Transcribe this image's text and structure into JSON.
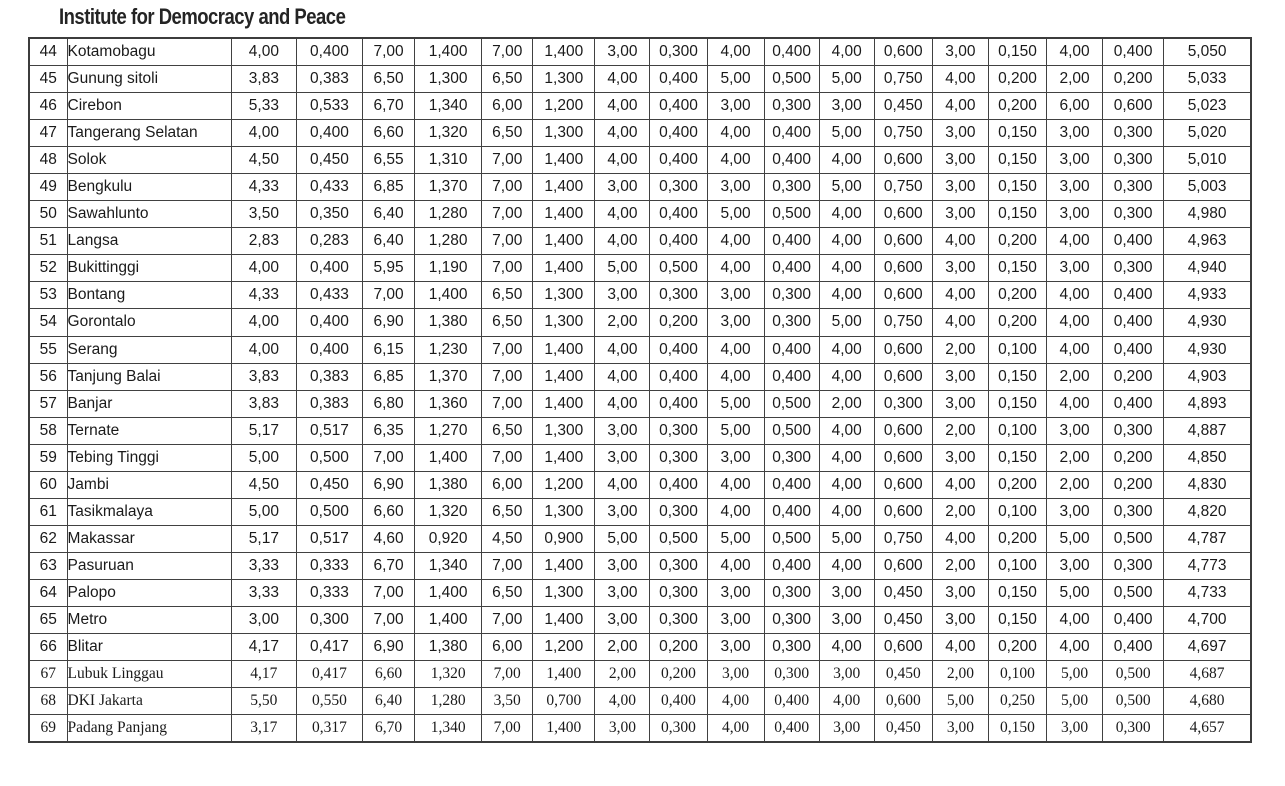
{
  "title": "Institute for Democracy and Peace",
  "accent_colors": {
    "text": "#1a1a1a",
    "grid": "#414141",
    "background": "#ffffff"
  },
  "table": {
    "rows": [
      {
        "no": "44",
        "city": "Kotamobagu",
        "font": "sans",
        "scores": [
          "4,00",
          "0,400",
          "7,00",
          "1,400",
          "7,00",
          "1,400",
          "3,00",
          "0,300",
          "4,00",
          "0,400",
          "4,00",
          "0,600",
          "3,00",
          "0,150",
          "4,00",
          "0,400"
        ],
        "total": "5,050"
      },
      {
        "no": "45",
        "city": "Gunung sitoli",
        "font": "sans",
        "scores": [
          "3,83",
          "0,383",
          "6,50",
          "1,300",
          "6,50",
          "1,300",
          "4,00",
          "0,400",
          "5,00",
          "0,500",
          "5,00",
          "0,750",
          "4,00",
          "0,200",
          "2,00",
          "0,200"
        ],
        "total": "5,033"
      },
      {
        "no": "46",
        "city": "Cirebon",
        "font": "sans",
        "scores": [
          "5,33",
          "0,533",
          "6,70",
          "1,340",
          "6,00",
          "1,200",
          "4,00",
          "0,400",
          "3,00",
          "0,300",
          "3,00",
          "0,450",
          "4,00",
          "0,200",
          "6,00",
          "0,600"
        ],
        "total": "5,023"
      },
      {
        "no": "47",
        "city": "Tangerang Selatan",
        "font": "sans",
        "scores": [
          "4,00",
          "0,400",
          "6,60",
          "1,320",
          "6,50",
          "1,300",
          "4,00",
          "0,400",
          "4,00",
          "0,400",
          "5,00",
          "0,750",
          "3,00",
          "0,150",
          "3,00",
          "0,300"
        ],
        "total": "5,020"
      },
      {
        "no": "48",
        "city": "Solok",
        "font": "sans",
        "scores": [
          "4,50",
          "0,450",
          "6,55",
          "1,310",
          "7,00",
          "1,400",
          "4,00",
          "0,400",
          "4,00",
          "0,400",
          "4,00",
          "0,600",
          "3,00",
          "0,150",
          "3,00",
          "0,300"
        ],
        "total": "5,010"
      },
      {
        "no": "49",
        "city": "Bengkulu",
        "font": "sans",
        "scores": [
          "4,33",
          "0,433",
          "6,85",
          "1,370",
          "7,00",
          "1,400",
          "3,00",
          "0,300",
          "3,00",
          "0,300",
          "5,00",
          "0,750",
          "3,00",
          "0,150",
          "3,00",
          "0,300"
        ],
        "total": "5,003"
      },
      {
        "no": "50",
        "city": "Sawahlunto",
        "font": "sans",
        "scores": [
          "3,50",
          "0,350",
          "6,40",
          "1,280",
          "7,00",
          "1,400",
          "4,00",
          "0,400",
          "5,00",
          "0,500",
          "4,00",
          "0,600",
          "3,00",
          "0,150",
          "3,00",
          "0,300"
        ],
        "total": "4,980"
      },
      {
        "no": "51",
        "city": "Langsa",
        "font": "sans",
        "scores": [
          "2,83",
          "0,283",
          "6,40",
          "1,280",
          "7,00",
          "1,400",
          "4,00",
          "0,400",
          "4,00",
          "0,400",
          "4,00",
          "0,600",
          "4,00",
          "0,200",
          "4,00",
          "0,400"
        ],
        "total": "4,963"
      },
      {
        "no": "52",
        "city": "Bukittinggi",
        "font": "sans",
        "scores": [
          "4,00",
          "0,400",
          "5,95",
          "1,190",
          "7,00",
          "1,400",
          "5,00",
          "0,500",
          "4,00",
          "0,400",
          "4,00",
          "0,600",
          "3,00",
          "0,150",
          "3,00",
          "0,300"
        ],
        "total": "4,940"
      },
      {
        "no": "53",
        "city": "Bontang",
        "font": "sans",
        "scores": [
          "4,33",
          "0,433",
          "7,00",
          "1,400",
          "6,50",
          "1,300",
          "3,00",
          "0,300",
          "3,00",
          "0,300",
          "4,00",
          "0,600",
          "4,00",
          "0,200",
          "4,00",
          "0,400"
        ],
        "total": "4,933"
      },
      {
        "no": "54",
        "city": "Gorontalo",
        "font": "sans",
        "scores": [
          "4,00",
          "0,400",
          "6,90",
          "1,380",
          "6,50",
          "1,300",
          "2,00",
          "0,200",
          "3,00",
          "0,300",
          "5,00",
          "0,750",
          "4,00",
          "0,200",
          "4,00",
          "0,400"
        ],
        "total": "4,930"
      },
      {
        "no": "55",
        "city": "Serang",
        "font": "sans",
        "scores": [
          "4,00",
          "0,400",
          "6,15",
          "1,230",
          "7,00",
          "1,400",
          "4,00",
          "0,400",
          "4,00",
          "0,400",
          "4,00",
          "0,600",
          "2,00",
          "0,100",
          "4,00",
          "0,400"
        ],
        "total": "4,930"
      },
      {
        "no": "56",
        "city": "Tanjung Balai",
        "font": "sans",
        "scores": [
          "3,83",
          "0,383",
          "6,85",
          "1,370",
          "7,00",
          "1,400",
          "4,00",
          "0,400",
          "4,00",
          "0,400",
          "4,00",
          "0,600",
          "3,00",
          "0,150",
          "2,00",
          "0,200"
        ],
        "total": "4,903"
      },
      {
        "no": "57",
        "city": "Banjar",
        "font": "sans",
        "scores": [
          "3,83",
          "0,383",
          "6,80",
          "1,360",
          "7,00",
          "1,400",
          "4,00",
          "0,400",
          "5,00",
          "0,500",
          "2,00",
          "0,300",
          "3,00",
          "0,150",
          "4,00",
          "0,400"
        ],
        "total": "4,893"
      },
      {
        "no": "58",
        "city": "Ternate",
        "font": "sans",
        "scores": [
          "5,17",
          "0,517",
          "6,35",
          "1,270",
          "6,50",
          "1,300",
          "3,00",
          "0,300",
          "5,00",
          "0,500",
          "4,00",
          "0,600",
          "2,00",
          "0,100",
          "3,00",
          "0,300"
        ],
        "total": "4,887"
      },
      {
        "no": "59",
        "city": "Tebing Tinggi",
        "font": "sans",
        "scores": [
          "5,00",
          "0,500",
          "7,00",
          "1,400",
          "7,00",
          "1,400",
          "3,00",
          "0,300",
          "3,00",
          "0,300",
          "4,00",
          "0,600",
          "3,00",
          "0,150",
          "2,00",
          "0,200"
        ],
        "total": "4,850"
      },
      {
        "no": "60",
        "city": "Jambi",
        "font": "sans",
        "scores": [
          "4,50",
          "0,450",
          "6,90",
          "1,380",
          "6,00",
          "1,200",
          "4,00",
          "0,400",
          "4,00",
          "0,400",
          "4,00",
          "0,600",
          "4,00",
          "0,200",
          "2,00",
          "0,200"
        ],
        "total": "4,830"
      },
      {
        "no": "61",
        "city": "Tasikmalaya",
        "font": "sans",
        "scores": [
          "5,00",
          "0,500",
          "6,60",
          "1,320",
          "6,50",
          "1,300",
          "3,00",
          "0,300",
          "4,00",
          "0,400",
          "4,00",
          "0,600",
          "2,00",
          "0,100",
          "3,00",
          "0,300"
        ],
        "total": "4,820"
      },
      {
        "no": "62",
        "city": "Makassar",
        "font": "sans",
        "scores": [
          "5,17",
          "0,517",
          "4,60",
          "0,920",
          "4,50",
          "0,900",
          "5,00",
          "0,500",
          "5,00",
          "0,500",
          "5,00",
          "0,750",
          "4,00",
          "0,200",
          "5,00",
          "0,500"
        ],
        "total": "4,787"
      },
      {
        "no": "63",
        "city": "Pasuruan",
        "font": "sans",
        "scores": [
          "3,33",
          "0,333",
          "6,70",
          "1,340",
          "7,00",
          "1,400",
          "3,00",
          "0,300",
          "4,00",
          "0,400",
          "4,00",
          "0,600",
          "2,00",
          "0,100",
          "3,00",
          "0,300"
        ],
        "total": "4,773"
      },
      {
        "no": "64",
        "city": "Palopo",
        "font": "sans",
        "scores": [
          "3,33",
          "0,333",
          "7,00",
          "1,400",
          "6,50",
          "1,300",
          "3,00",
          "0,300",
          "3,00",
          "0,300",
          "3,00",
          "0,450",
          "3,00",
          "0,150",
          "5,00",
          "0,500"
        ],
        "total": "4,733"
      },
      {
        "no": "65",
        "city": "Metro",
        "font": "sans",
        "scores": [
          "3,00",
          "0,300",
          "7,00",
          "1,400",
          "7,00",
          "1,400",
          "3,00",
          "0,300",
          "3,00",
          "0,300",
          "3,00",
          "0,450",
          "3,00",
          "0,150",
          "4,00",
          "0,400"
        ],
        "total": "4,700"
      },
      {
        "no": "66",
        "city": "Blitar",
        "font": "sans",
        "scores": [
          "4,17",
          "0,417",
          "6,90",
          "1,380",
          "6,00",
          "1,200",
          "2,00",
          "0,200",
          "3,00",
          "0,300",
          "4,00",
          "0,600",
          "4,00",
          "0,200",
          "4,00",
          "0,400"
        ],
        "total": "4,697"
      },
      {
        "no": "67",
        "city": "Lubuk Linggau",
        "font": "serif",
        "scores": [
          "4,17",
          "0,417",
          "6,60",
          "1,320",
          "7,00",
          "1,400",
          "2,00",
          "0,200",
          "3,00",
          "0,300",
          "3,00",
          "0,450",
          "2,00",
          "0,100",
          "5,00",
          "0,500"
        ],
        "total": "4,687"
      },
      {
        "no": "68",
        "city": "DKI Jakarta",
        "font": "serif",
        "scores": [
          "5,50",
          "0,550",
          "6,40",
          "1,280",
          "3,50",
          "0,700",
          "4,00",
          "0,400",
          "4,00",
          "0,400",
          "4,00",
          "0,600",
          "5,00",
          "0,250",
          "5,00",
          "0,500"
        ],
        "total": "4,680"
      },
      {
        "no": "69",
        "city": "Padang Panjang",
        "font": "serif",
        "scores": [
          "3,17",
          "0,317",
          "6,70",
          "1,340",
          "7,00",
          "1,400",
          "3,00",
          "0,300",
          "4,00",
          "0,400",
          "3,00",
          "0,450",
          "3,00",
          "0,150",
          "3,00",
          "0,300"
        ],
        "total": "4,657"
      }
    ]
  }
}
